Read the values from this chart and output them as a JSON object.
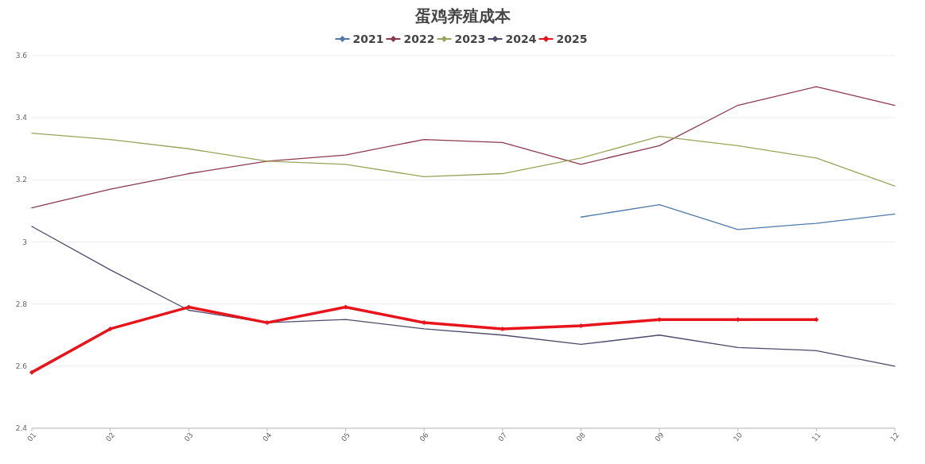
{
  "chart_data": {
    "type": "line",
    "title": "蛋鸡养殖成本",
    "categories": [
      "01",
      "02",
      "03",
      "04",
      "05",
      "06",
      "07",
      "08",
      "09",
      "10",
      "11",
      "12"
    ],
    "series": [
      {
        "name": "2021",
        "color": "#4f79a8",
        "values": [
          null,
          null,
          null,
          null,
          null,
          null,
          null,
          3.08,
          3.12,
          3.04,
          3.06,
          3.09
        ]
      },
      {
        "name": "2022",
        "color": "#8b3a4e",
        "values": [
          3.11,
          3.17,
          3.22,
          3.26,
          3.28,
          3.33,
          3.32,
          3.25,
          3.31,
          3.44,
          3.5,
          3.44
        ]
      },
      {
        "name": "2023",
        "color": "#9aa35c",
        "values": [
          3.35,
          3.33,
          3.3,
          3.26,
          3.25,
          3.21,
          3.22,
          3.27,
          3.34,
          3.31,
          3.27,
          3.18
        ]
      },
      {
        "name": "2024",
        "color": "#4b4a6b",
        "values": [
          3.05,
          2.91,
          2.78,
          2.74,
          2.75,
          2.72,
          2.7,
          2.67,
          2.7,
          2.66,
          2.65,
          2.6
        ]
      },
      {
        "name": "2025",
        "color": "#e8141c",
        "marker": "diamond",
        "values": [
          2.58,
          2.72,
          2.79,
          2.74,
          2.79,
          2.74,
          2.72,
          2.73,
          2.75,
          2.75,
          2.75,
          null
        ]
      }
    ],
    "ylim": [
      2.4,
      3.6
    ],
    "yticks": [
      {
        "value": 2.4,
        "label": "2.4"
      },
      {
        "value": 2.6,
        "label": "2.6"
      },
      {
        "value": 2.8,
        "label": "2.8"
      },
      3,
      {
        "value": 3.2,
        "label": "3.2"
      },
      {
        "value": 3.4,
        "label": "3.4"
      },
      {
        "value": 3.6,
        "label": "3.6"
      }
    ],
    "grid": "y",
    "legend": "top"
  }
}
